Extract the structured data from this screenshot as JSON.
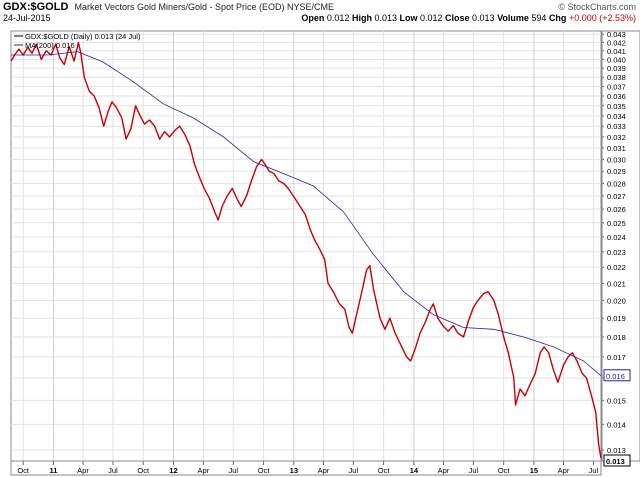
{
  "header": {
    "symbol": "GDX:$GOLD",
    "description": "Market Vectors Gold Miners/Gold - Spot Price (EOD) NYSE/CME",
    "brand": "© StockCharts.com",
    "date": "24-Jul-2015",
    "ohlc": [
      {
        "label": "Open",
        "value": "0.012"
      },
      {
        "label": "High",
        "value": "0.013"
      },
      {
        "label": "Low",
        "value": "0.012"
      },
      {
        "label": "Close",
        "value": "0.013"
      },
      {
        "label": "Volume",
        "value": "594"
      },
      {
        "label": "Chg",
        "value": "+0.000 (+2.53%)"
      }
    ],
    "chg_color": "#cc0000"
  },
  "legend": [
    {
      "label": "GDX:$GOLD (Daily) 0.013 (24 Jul)",
      "color": "#000000"
    },
    {
      "label": "MA(200) 0.016",
      "color": "#2222aa"
    }
  ],
  "badges": [
    {
      "text": "0.016",
      "value": 0.0161,
      "style": "ma"
    },
    {
      "text": "0.013",
      "value": 0.0126,
      "style": "price"
    }
  ],
  "chart_data": {
    "type": "line",
    "y_scale": "log",
    "ylim": [
      0.0126,
      0.0434
    ],
    "x_range": [
      "2010-08-25",
      "2015-07-24"
    ],
    "yticks": [
      0.013,
      0.014,
      0.015,
      0.016,
      0.017,
      0.018,
      0.019,
      0.02,
      0.021,
      0.022,
      0.023,
      0.024,
      0.025,
      0.026,
      0.027,
      0.028,
      0.029,
      0.03,
      0.031,
      0.032,
      0.033,
      0.034,
      0.035,
      0.036,
      0.037,
      0.038,
      0.039,
      0.04,
      0.041,
      0.042,
      0.043
    ],
    "xticks": [
      {
        "label": "Oct",
        "date": "2010-10-01",
        "year": false
      },
      {
        "label": "11",
        "date": "2011-01-01",
        "year": true
      },
      {
        "label": "Apr",
        "date": "2011-04-01",
        "year": false
      },
      {
        "label": "Jul",
        "date": "2011-07-01",
        "year": false
      },
      {
        "label": "Oct",
        "date": "2011-10-01",
        "year": false
      },
      {
        "label": "12",
        "date": "2012-01-01",
        "year": true
      },
      {
        "label": "Apr",
        "date": "2012-04-01",
        "year": false
      },
      {
        "label": "Jul",
        "date": "2012-07-01",
        "year": false
      },
      {
        "label": "Oct",
        "date": "2012-10-01",
        "year": false
      },
      {
        "label": "13",
        "date": "2013-01-01",
        "year": true
      },
      {
        "label": "Apr",
        "date": "2013-04-01",
        "year": false
      },
      {
        "label": "Jul",
        "date": "2013-07-01",
        "year": false
      },
      {
        "label": "Oct",
        "date": "2013-10-01",
        "year": false
      },
      {
        "label": "14",
        "date": "2014-01-01",
        "year": true
      },
      {
        "label": "Apr",
        "date": "2014-04-01",
        "year": false
      },
      {
        "label": "Jul",
        "date": "2014-07-01",
        "year": false
      },
      {
        "label": "Oct",
        "date": "2014-10-01",
        "year": false
      },
      {
        "label": "15",
        "date": "2015-01-01",
        "year": true
      },
      {
        "label": "Apr",
        "date": "2015-04-01",
        "year": false
      },
      {
        "label": "Jul",
        "date": "2015-07-01",
        "year": false
      }
    ],
    "grid": true,
    "series": [
      {
        "name": "GDX:$GOLD (Daily)",
        "color": "#cc0000",
        "points": [
          [
            "2010-08-25",
            0.0398
          ],
          [
            "2010-09-05",
            0.0405
          ],
          [
            "2010-09-18",
            0.0412
          ],
          [
            "2010-10-01",
            0.0405
          ],
          [
            "2010-10-15",
            0.0414
          ],
          [
            "2010-10-28",
            0.0407
          ],
          [
            "2010-11-10",
            0.0418
          ],
          [
            "2010-11-25",
            0.04
          ],
          [
            "2010-12-10",
            0.041
          ],
          [
            "2010-12-25",
            0.0405
          ],
          [
            "2011-01-08",
            0.0418
          ],
          [
            "2011-01-20",
            0.0402
          ],
          [
            "2011-02-03",
            0.0394
          ],
          [
            "2011-02-18",
            0.0415
          ],
          [
            "2011-03-05",
            0.0398
          ],
          [
            "2011-03-18",
            0.042
          ],
          [
            "2011-03-25",
            0.0408
          ],
          [
            "2011-04-05",
            0.038
          ],
          [
            "2011-04-20",
            0.0365
          ],
          [
            "2011-05-05",
            0.036
          ],
          [
            "2011-05-20",
            0.0348
          ],
          [
            "2011-06-03",
            0.033
          ],
          [
            "2011-06-16",
            0.0344
          ],
          [
            "2011-06-28",
            0.0354
          ],
          [
            "2011-07-12",
            0.0348
          ],
          [
            "2011-07-28",
            0.0338
          ],
          [
            "2011-08-10",
            0.0318
          ],
          [
            "2011-08-25",
            0.0328
          ],
          [
            "2011-09-08",
            0.035
          ],
          [
            "2011-09-22",
            0.034
          ],
          [
            "2011-10-05",
            0.0332
          ],
          [
            "2011-10-20",
            0.0336
          ],
          [
            "2011-11-05",
            0.033
          ],
          [
            "2011-11-20",
            0.0318
          ],
          [
            "2011-12-05",
            0.0325
          ],
          [
            "2011-12-20",
            0.032
          ],
          [
            "2012-01-05",
            0.0326
          ],
          [
            "2012-01-20",
            0.033
          ],
          [
            "2012-02-05",
            0.0322
          ],
          [
            "2012-02-20",
            0.0312
          ],
          [
            "2012-03-05",
            0.0296
          ],
          [
            "2012-03-20",
            0.0285
          ],
          [
            "2012-04-05",
            0.0275
          ],
          [
            "2012-04-20",
            0.0268
          ],
          [
            "2012-05-05",
            0.0258
          ],
          [
            "2012-05-16",
            0.0252
          ],
          [
            "2012-05-28",
            0.0262
          ],
          [
            "2012-06-12",
            0.027
          ],
          [
            "2012-06-28",
            0.0276
          ],
          [
            "2012-07-12",
            0.0268
          ],
          [
            "2012-07-25",
            0.0262
          ],
          [
            "2012-08-10",
            0.027
          ],
          [
            "2012-08-25",
            0.0282
          ],
          [
            "2012-09-10",
            0.0294
          ],
          [
            "2012-09-25",
            0.03
          ],
          [
            "2012-10-05",
            0.0296
          ],
          [
            "2012-10-18",
            0.029
          ],
          [
            "2012-11-02",
            0.0288
          ],
          [
            "2012-11-16",
            0.0282
          ],
          [
            "2012-12-01",
            0.028
          ],
          [
            "2012-12-15",
            0.0276
          ],
          [
            "2013-01-05",
            0.0268
          ],
          [
            "2013-01-20",
            0.0262
          ],
          [
            "2013-02-05",
            0.0256
          ],
          [
            "2013-02-20",
            0.0245
          ],
          [
            "2013-03-05",
            0.0238
          ],
          [
            "2013-03-20",
            0.0232
          ],
          [
            "2013-04-05",
            0.0225
          ],
          [
            "2013-04-15",
            0.021
          ],
          [
            "2013-05-01",
            0.0205
          ],
          [
            "2013-05-20",
            0.0198
          ],
          [
            "2013-06-05",
            0.0195
          ],
          [
            "2013-06-18",
            0.0185
          ],
          [
            "2013-06-28",
            0.0182
          ],
          [
            "2013-07-12",
            0.0193
          ],
          [
            "2013-07-28",
            0.0206
          ],
          [
            "2013-08-10",
            0.0218
          ],
          [
            "2013-08-20",
            0.0221
          ],
          [
            "2013-09-01",
            0.0206
          ],
          [
            "2013-09-20",
            0.019
          ],
          [
            "2013-10-05",
            0.0184
          ],
          [
            "2013-10-20",
            0.019
          ],
          [
            "2013-11-05",
            0.0182
          ],
          [
            "2013-11-25",
            0.0175
          ],
          [
            "2013-12-10",
            0.017
          ],
          [
            "2013-12-22",
            0.0168
          ],
          [
            "2014-01-05",
            0.0174
          ],
          [
            "2014-01-20",
            0.0182
          ],
          [
            "2014-02-05",
            0.0188
          ],
          [
            "2014-02-20",
            0.0195
          ],
          [
            "2014-03-01",
            0.0198
          ],
          [
            "2014-03-15",
            0.019
          ],
          [
            "2014-03-30",
            0.0186
          ],
          [
            "2014-04-15",
            0.0183
          ],
          [
            "2014-05-01",
            0.0186
          ],
          [
            "2014-05-15",
            0.0182
          ],
          [
            "2014-06-01",
            0.018
          ],
          [
            "2014-06-15",
            0.0188
          ],
          [
            "2014-07-01",
            0.0196
          ],
          [
            "2014-07-15",
            0.02
          ],
          [
            "2014-08-01",
            0.0204
          ],
          [
            "2014-08-15",
            0.0205
          ],
          [
            "2014-09-01",
            0.02
          ],
          [
            "2014-09-15",
            0.0192
          ],
          [
            "2014-10-01",
            0.018
          ],
          [
            "2014-10-15",
            0.0172
          ],
          [
            "2014-11-01",
            0.016
          ],
          [
            "2014-11-06",
            0.0148
          ],
          [
            "2014-11-20",
            0.0155
          ],
          [
            "2014-12-05",
            0.0152
          ],
          [
            "2014-12-20",
            0.0157
          ],
          [
            "2015-01-05",
            0.0162
          ],
          [
            "2015-01-20",
            0.0172
          ],
          [
            "2015-02-01",
            0.0175
          ],
          [
            "2015-02-15",
            0.0172
          ],
          [
            "2015-03-01",
            0.0164
          ],
          [
            "2015-03-15",
            0.0158
          ],
          [
            "2015-04-01",
            0.0166
          ],
          [
            "2015-04-15",
            0.017
          ],
          [
            "2015-04-28",
            0.0172
          ],
          [
            "2015-05-12",
            0.0168
          ],
          [
            "2015-05-28",
            0.0162
          ],
          [
            "2015-06-10",
            0.016
          ],
          [
            "2015-06-25",
            0.0152
          ],
          [
            "2015-07-08",
            0.0145
          ],
          [
            "2015-07-17",
            0.0132
          ],
          [
            "2015-07-24",
            0.0127
          ]
        ]
      },
      {
        "name": "MA(200)",
        "color": "#2222aa",
        "points": [
          [
            "2010-08-25",
            0.0405
          ],
          [
            "2010-12-15",
            0.0405
          ],
          [
            "2011-03-15",
            0.0409
          ],
          [
            "2011-06-01",
            0.0397
          ],
          [
            "2011-09-01",
            0.0375
          ],
          [
            "2011-12-01",
            0.0352
          ],
          [
            "2012-03-01",
            0.0338
          ],
          [
            "2012-06-01",
            0.032
          ],
          [
            "2012-09-01",
            0.0298
          ],
          [
            "2012-12-01",
            0.0288
          ],
          [
            "2013-03-01",
            0.0278
          ],
          [
            "2013-06-01",
            0.0258
          ],
          [
            "2013-09-01",
            0.0228
          ],
          [
            "2013-12-01",
            0.0205
          ],
          [
            "2014-03-01",
            0.0192
          ],
          [
            "2014-06-01",
            0.0185
          ],
          [
            "2014-09-01",
            0.0184
          ],
          [
            "2014-12-01",
            0.018
          ],
          [
            "2015-03-01",
            0.0175
          ],
          [
            "2015-06-01",
            0.0168
          ],
          [
            "2015-07-24",
            0.0161
          ]
        ]
      }
    ]
  }
}
